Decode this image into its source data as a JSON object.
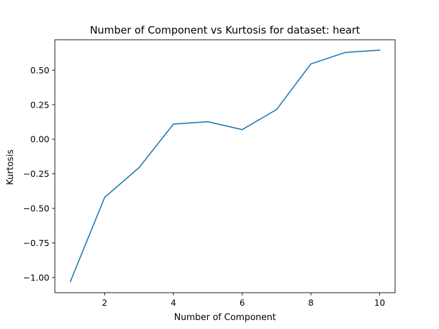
{
  "chart_data": {
    "type": "line",
    "title": "Number of Component vs Kurtosis for dataset: heart",
    "xlabel": "Number of Component",
    "ylabel": "Kurtosis",
    "xlim": [
      0.55,
      10.45
    ],
    "ylim": [
      -1.11,
      0.72
    ],
    "grid": false,
    "x_ticks": [
      2,
      4,
      6,
      8,
      10
    ],
    "x_tick_labels": [
      "2",
      "4",
      "6",
      "8",
      "10"
    ],
    "y_ticks": [
      -1.0,
      -0.75,
      -0.5,
      -0.25,
      0.0,
      0.25,
      0.5
    ],
    "y_tick_labels": [
      "−1.00",
      "−0.75",
      "−0.50",
      "−0.25",
      "0.00",
      "0.25",
      "0.50"
    ],
    "series": [
      {
        "color": "#1f77b4",
        "x": [
          1,
          2,
          3,
          4,
          5,
          6,
          7,
          8,
          9,
          10
        ],
        "values": [
          -1.03,
          -0.42,
          -0.205,
          0.11,
          0.127,
          0.07,
          0.215,
          0.545,
          0.628,
          0.645
        ]
      }
    ]
  }
}
